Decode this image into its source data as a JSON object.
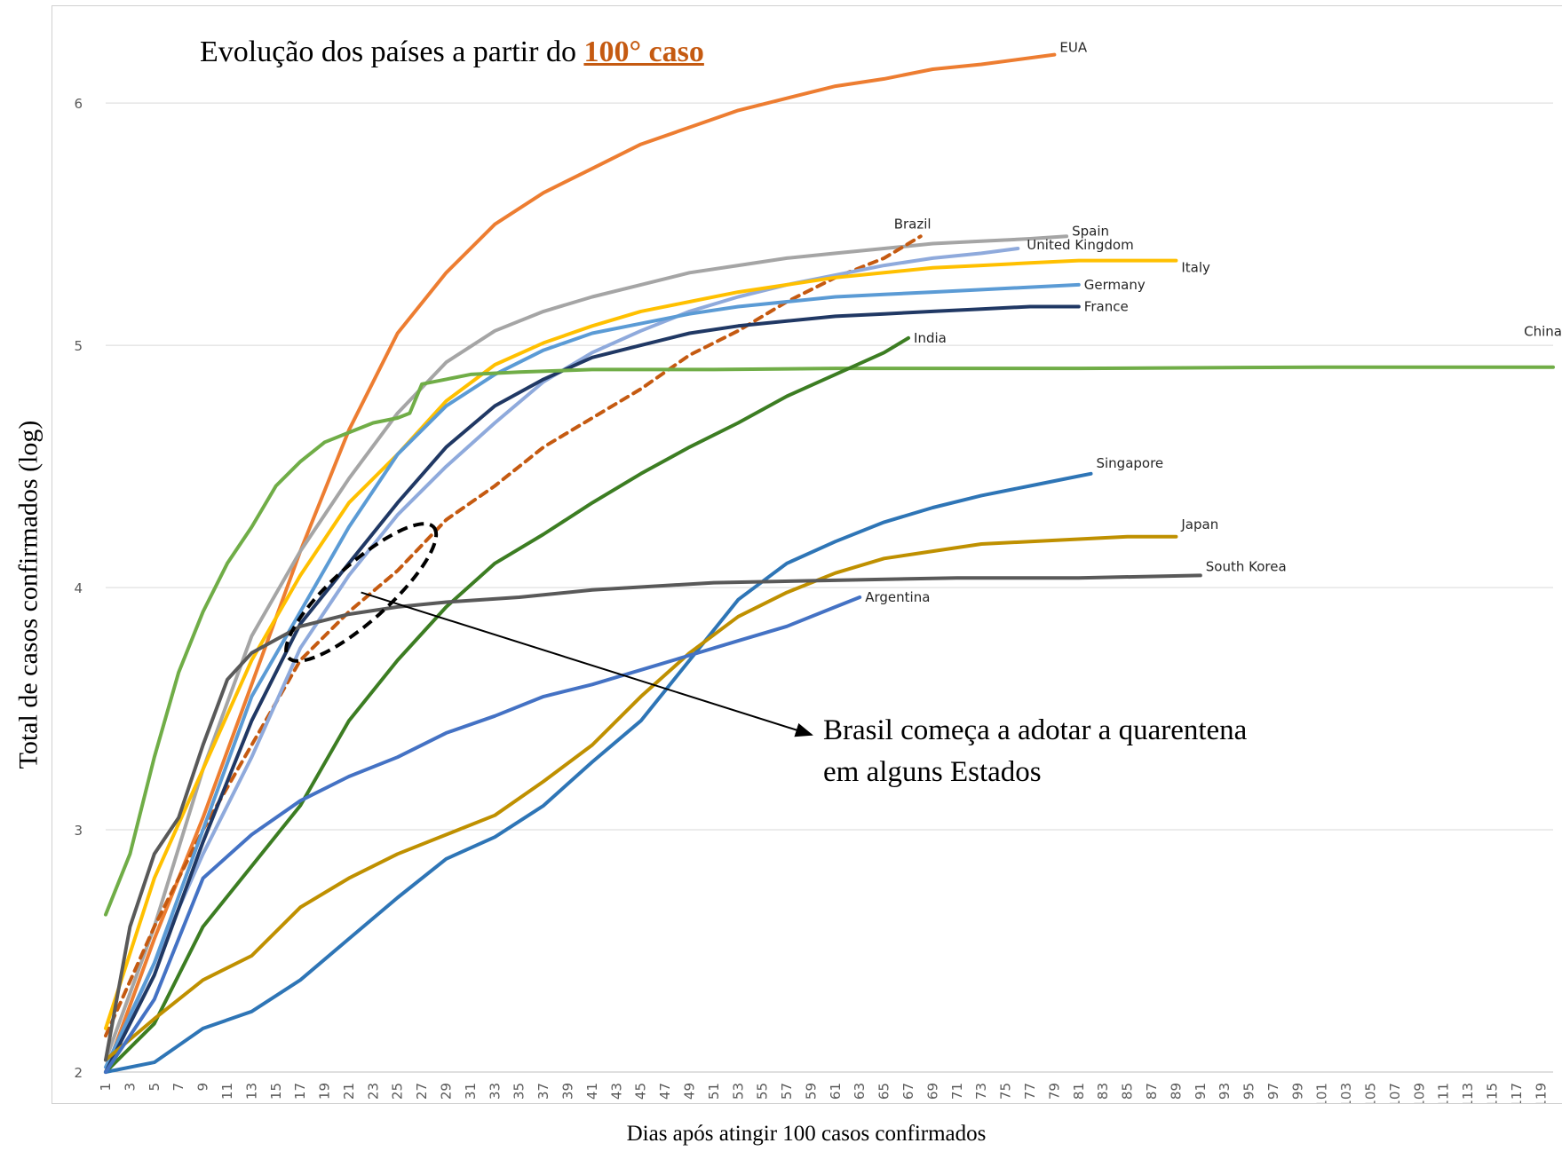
{
  "title": {
    "prefix": "Evolução dos países a partir do ",
    "highlight": "100° caso"
  },
  "annotation": {
    "line1": "Brasil começa a adotar a quarentena",
    "line2": "em alguns Estados"
  },
  "chart_data": {
    "type": "line",
    "xlabel": "Dias após atingir  100 casos confirmados",
    "ylabel": "Total de casos confirmados (log)",
    "xlim": [
      1,
      120
    ],
    "ylim": [
      2,
      6.4
    ],
    "yticks": [
      2,
      3,
      4,
      5,
      6
    ],
    "x_tick_step": 2,
    "grid": "horizontal",
    "series": [
      {
        "name": "EUA",
        "color": "#ed7d31",
        "dash": false,
        "points": [
          [
            1,
            2.0
          ],
          [
            5,
            2.55
          ],
          [
            9,
            3.05
          ],
          [
            13,
            3.6
          ],
          [
            17,
            4.15
          ],
          [
            21,
            4.65
          ],
          [
            25,
            5.05
          ],
          [
            29,
            5.3
          ],
          [
            33,
            5.5
          ],
          [
            37,
            5.63
          ],
          [
            41,
            5.73
          ],
          [
            45,
            5.83
          ],
          [
            49,
            5.9
          ],
          [
            53,
            5.97
          ],
          [
            57,
            6.02
          ],
          [
            61,
            6.07
          ],
          [
            65,
            6.1
          ],
          [
            69,
            6.14
          ],
          [
            73,
            6.16
          ],
          [
            79,
            6.2
          ]
        ]
      },
      {
        "name": "Spain",
        "color": "#a5a5a5",
        "dash": false,
        "points": [
          [
            1,
            2.05
          ],
          [
            5,
            2.6
          ],
          [
            9,
            3.25
          ],
          [
            13,
            3.8
          ],
          [
            17,
            4.15
          ],
          [
            21,
            4.45
          ],
          [
            25,
            4.72
          ],
          [
            29,
            4.93
          ],
          [
            33,
            5.06
          ],
          [
            37,
            5.14
          ],
          [
            41,
            5.2
          ],
          [
            45,
            5.25
          ],
          [
            49,
            5.3
          ],
          [
            53,
            5.33
          ],
          [
            57,
            5.36
          ],
          [
            61,
            5.38
          ],
          [
            65,
            5.4
          ],
          [
            69,
            5.42
          ],
          [
            73,
            5.43
          ],
          [
            77,
            5.44
          ],
          [
            80,
            5.45
          ]
        ]
      },
      {
        "name": "Brazil",
        "color": "#c55a11",
        "dash": true,
        "points": [
          [
            1,
            2.15
          ],
          [
            5,
            2.6
          ],
          [
            9,
            3.0
          ],
          [
            13,
            3.35
          ],
          [
            17,
            3.7
          ],
          [
            21,
            3.9
          ],
          [
            25,
            4.07
          ],
          [
            29,
            4.28
          ],
          [
            33,
            4.42
          ],
          [
            37,
            4.58
          ],
          [
            41,
            4.7
          ],
          [
            45,
            4.82
          ],
          [
            49,
            4.96
          ],
          [
            53,
            5.06
          ],
          [
            57,
            5.18
          ],
          [
            61,
            5.28
          ],
          [
            65,
            5.36
          ],
          [
            68,
            5.45
          ]
        ]
      },
      {
        "name": "United Kingdom",
        "color": "#8faadc",
        "dash": false,
        "points": [
          [
            1,
            2.0
          ],
          [
            5,
            2.45
          ],
          [
            9,
            2.9
          ],
          [
            13,
            3.3
          ],
          [
            17,
            3.75
          ],
          [
            21,
            4.05
          ],
          [
            25,
            4.3
          ],
          [
            29,
            4.5
          ],
          [
            33,
            4.68
          ],
          [
            37,
            4.85
          ],
          [
            41,
            4.97
          ],
          [
            45,
            5.06
          ],
          [
            49,
            5.14
          ],
          [
            53,
            5.2
          ],
          [
            57,
            5.25
          ],
          [
            61,
            5.29
          ],
          [
            65,
            5.33
          ],
          [
            69,
            5.36
          ],
          [
            73,
            5.38
          ],
          [
            76,
            5.4
          ]
        ]
      },
      {
        "name": "Italy",
        "color": "#ffc000",
        "dash": false,
        "points": [
          [
            1,
            2.18
          ],
          [
            5,
            2.8
          ],
          [
            9,
            3.25
          ],
          [
            13,
            3.7
          ],
          [
            17,
            4.05
          ],
          [
            21,
            4.35
          ],
          [
            25,
            4.55
          ],
          [
            29,
            4.77
          ],
          [
            33,
            4.92
          ],
          [
            37,
            5.01
          ],
          [
            41,
            5.08
          ],
          [
            45,
            5.14
          ],
          [
            49,
            5.18
          ],
          [
            53,
            5.22
          ],
          [
            57,
            5.25
          ],
          [
            61,
            5.28
          ],
          [
            65,
            5.3
          ],
          [
            69,
            5.32
          ],
          [
            73,
            5.33
          ],
          [
            77,
            5.34
          ],
          [
            81,
            5.35
          ],
          [
            85,
            5.35
          ],
          [
            89,
            5.35
          ]
        ]
      },
      {
        "name": "Germany",
        "color": "#5b9bd5",
        "dash": false,
        "points": [
          [
            1,
            2.02
          ],
          [
            5,
            2.45
          ],
          [
            9,
            3.0
          ],
          [
            13,
            3.55
          ],
          [
            17,
            3.9
          ],
          [
            21,
            4.25
          ],
          [
            25,
            4.55
          ],
          [
            29,
            4.75
          ],
          [
            33,
            4.88
          ],
          [
            37,
            4.98
          ],
          [
            41,
            5.05
          ],
          [
            45,
            5.09
          ],
          [
            49,
            5.13
          ],
          [
            53,
            5.16
          ],
          [
            57,
            5.18
          ],
          [
            61,
            5.2
          ],
          [
            65,
            5.21
          ],
          [
            69,
            5.22
          ],
          [
            73,
            5.23
          ],
          [
            77,
            5.24
          ],
          [
            81,
            5.25
          ]
        ]
      },
      {
        "name": "France",
        "color": "#203864",
        "dash": false,
        "points": [
          [
            1,
            2.0
          ],
          [
            5,
            2.4
          ],
          [
            9,
            2.95
          ],
          [
            13,
            3.45
          ],
          [
            17,
            3.85
          ],
          [
            21,
            4.1
          ],
          [
            25,
            4.35
          ],
          [
            29,
            4.58
          ],
          [
            33,
            4.75
          ],
          [
            37,
            4.86
          ],
          [
            41,
            4.95
          ],
          [
            45,
            5.0
          ],
          [
            49,
            5.05
          ],
          [
            53,
            5.08
          ],
          [
            57,
            5.1
          ],
          [
            61,
            5.12
          ],
          [
            65,
            5.13
          ],
          [
            69,
            5.14
          ],
          [
            73,
            5.15
          ],
          [
            77,
            5.16
          ],
          [
            81,
            5.16
          ]
        ]
      },
      {
        "name": "China",
        "color": "#70ad47",
        "dash": false,
        "points": [
          [
            1,
            2.65
          ],
          [
            3,
            2.9
          ],
          [
            5,
            3.3
          ],
          [
            7,
            3.65
          ],
          [
            9,
            3.9
          ],
          [
            11,
            4.1
          ],
          [
            13,
            4.25
          ],
          [
            15,
            4.42
          ],
          [
            17,
            4.52
          ],
          [
            19,
            4.6
          ],
          [
            21,
            4.64
          ],
          [
            23,
            4.68
          ],
          [
            25,
            4.7
          ],
          [
            26,
            4.72
          ],
          [
            27,
            4.84
          ],
          [
            29,
            4.86
          ],
          [
            31,
            4.88
          ],
          [
            35,
            4.89
          ],
          [
            41,
            4.9
          ],
          [
            51,
            4.9
          ],
          [
            61,
            4.905
          ],
          [
            81,
            4.905
          ],
          [
            101,
            4.91
          ],
          [
            120,
            4.91
          ]
        ]
      },
      {
        "name": "India",
        "color": "#3c7d22",
        "dash": false,
        "points": [
          [
            1,
            2.0
          ],
          [
            5,
            2.2
          ],
          [
            9,
            2.6
          ],
          [
            13,
            2.85
          ],
          [
            17,
            3.1
          ],
          [
            21,
            3.45
          ],
          [
            25,
            3.7
          ],
          [
            29,
            3.92
          ],
          [
            33,
            4.1
          ],
          [
            37,
            4.22
          ],
          [
            41,
            4.35
          ],
          [
            45,
            4.47
          ],
          [
            49,
            4.58
          ],
          [
            53,
            4.68
          ],
          [
            57,
            4.79
          ],
          [
            61,
            4.88
          ],
          [
            65,
            4.97
          ],
          [
            67,
            5.03
          ]
        ]
      },
      {
        "name": "Singapore",
        "color": "#2e75b6",
        "dash": false,
        "points": [
          [
            1,
            2.0
          ],
          [
            5,
            2.04
          ],
          [
            9,
            2.18
          ],
          [
            13,
            2.25
          ],
          [
            17,
            2.38
          ],
          [
            21,
            2.55
          ],
          [
            25,
            2.72
          ],
          [
            29,
            2.88
          ],
          [
            33,
            2.97
          ],
          [
            37,
            3.1
          ],
          [
            41,
            3.28
          ],
          [
            45,
            3.45
          ],
          [
            49,
            3.7
          ],
          [
            53,
            3.95
          ],
          [
            57,
            4.1
          ],
          [
            61,
            4.19
          ],
          [
            65,
            4.27
          ],
          [
            69,
            4.33
          ],
          [
            73,
            4.38
          ],
          [
            77,
            4.42
          ],
          [
            81,
            4.46
          ],
          [
            82,
            4.47
          ]
        ]
      },
      {
        "name": "Japan",
        "color": "#bf9000",
        "dash": false,
        "points": [
          [
            1,
            2.05
          ],
          [
            5,
            2.22
          ],
          [
            9,
            2.38
          ],
          [
            13,
            2.48
          ],
          [
            17,
            2.68
          ],
          [
            21,
            2.8
          ],
          [
            25,
            2.9
          ],
          [
            29,
            2.98
          ],
          [
            33,
            3.06
          ],
          [
            37,
            3.2
          ],
          [
            41,
            3.35
          ],
          [
            45,
            3.55
          ],
          [
            49,
            3.73
          ],
          [
            53,
            3.88
          ],
          [
            57,
            3.98
          ],
          [
            61,
            4.06
          ],
          [
            65,
            4.12
          ],
          [
            69,
            4.15
          ],
          [
            73,
            4.18
          ],
          [
            77,
            4.19
          ],
          [
            81,
            4.2
          ],
          [
            85,
            4.21
          ],
          [
            89,
            4.21
          ]
        ]
      },
      {
        "name": "South Korea",
        "color": "#595959",
        "dash": false,
        "points": [
          [
            1,
            2.05
          ],
          [
            3,
            2.6
          ],
          [
            5,
            2.9
          ],
          [
            7,
            3.05
          ],
          [
            9,
            3.35
          ],
          [
            11,
            3.62
          ],
          [
            13,
            3.73
          ],
          [
            17,
            3.84
          ],
          [
            21,
            3.89
          ],
          [
            25,
            3.92
          ],
          [
            29,
            3.94
          ],
          [
            35,
            3.96
          ],
          [
            41,
            3.99
          ],
          [
            51,
            4.02
          ],
          [
            61,
            4.03
          ],
          [
            71,
            4.04
          ],
          [
            81,
            4.04
          ],
          [
            91,
            4.05
          ]
        ]
      },
      {
        "name": "Argentina",
        "color": "#4472c4",
        "dash": false,
        "points": [
          [
            1,
            2.0
          ],
          [
            5,
            2.3
          ],
          [
            9,
            2.8
          ],
          [
            13,
            2.98
          ],
          [
            17,
            3.12
          ],
          [
            21,
            3.22
          ],
          [
            25,
            3.3
          ],
          [
            29,
            3.4
          ],
          [
            33,
            3.47
          ],
          [
            37,
            3.55
          ],
          [
            41,
            3.6
          ],
          [
            45,
            3.66
          ],
          [
            49,
            3.72
          ],
          [
            53,
            3.78
          ],
          [
            57,
            3.84
          ],
          [
            61,
            3.92
          ],
          [
            63,
            3.96
          ]
        ]
      }
    ]
  }
}
